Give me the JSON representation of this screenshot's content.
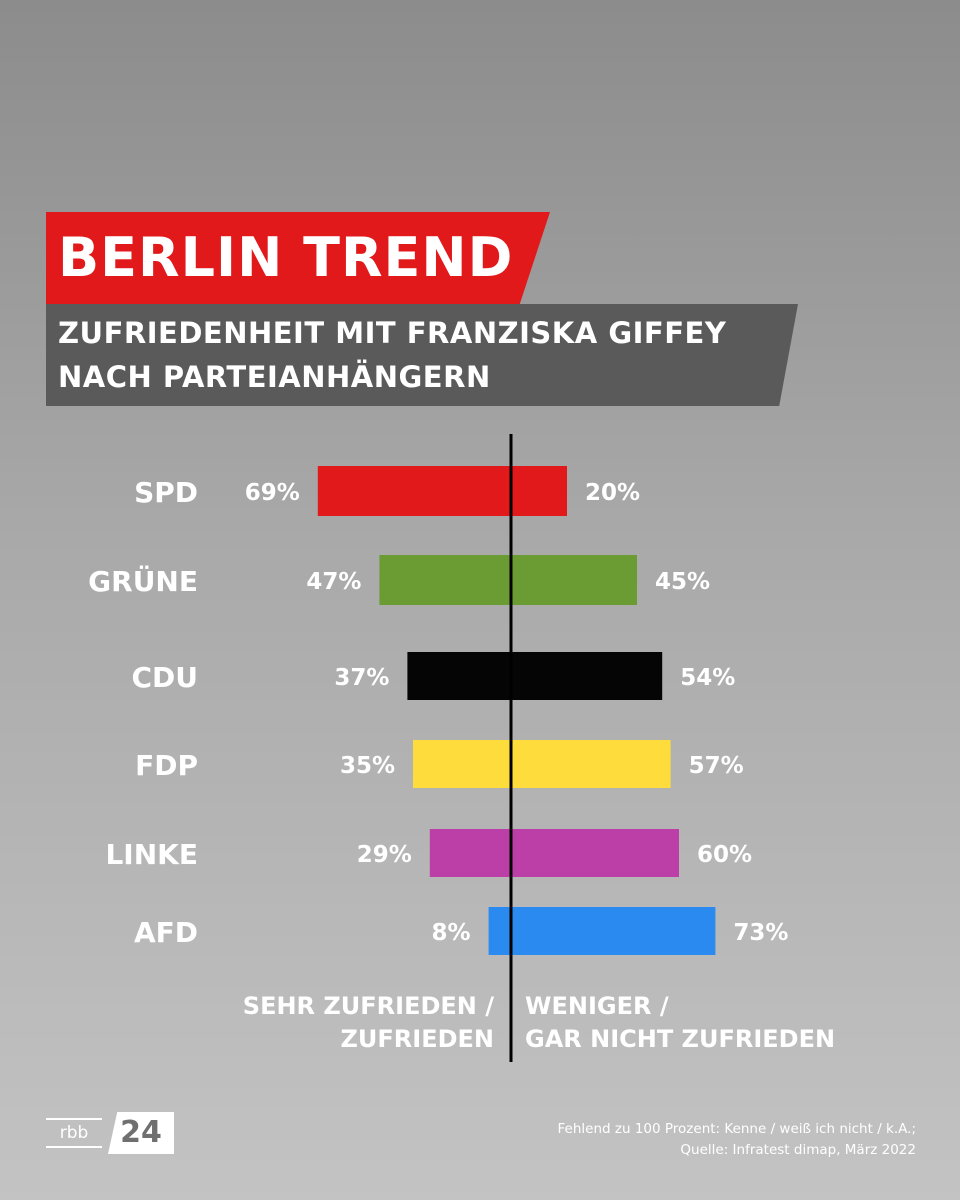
{
  "header": {
    "title": "BERLIN TREND",
    "subtitle_line1": "ZUFRIEDENHEIT MIT FRANZISKA GIFFEY",
    "subtitle_line2": "NACH PARTEIANHÄNGERN"
  },
  "chart_data": {
    "type": "bar",
    "orientation": "horizontal-diverging",
    "categories": [
      "SPD",
      "GRÜNE",
      "CDU",
      "FDP",
      "LINKE",
      "AFD"
    ],
    "series": [
      {
        "name": "SEHR ZUFRIEDEN / ZUFRIEDEN",
        "direction": "left",
        "values": [
          69,
          47,
          37,
          35,
          29,
          8
        ]
      },
      {
        "name": "WENIGER / GAR NICHT ZUFRIEDEN",
        "direction": "right",
        "values": [
          20,
          45,
          54,
          57,
          60,
          73
        ]
      }
    ],
    "value_suffix": "%",
    "colors": [
      "#e2191b",
      "#6a9c33",
      "#050505",
      "#fedc3b",
      "#bc3fa7",
      "#2a8af0"
    ],
    "value_label_color": "#ffffff",
    "center_line_color": "#000000",
    "grid": false
  },
  "captions": {
    "left_line1": "SEHR ZUFRIEDEN /",
    "left_line2": "ZUFRIEDEN",
    "right_line1": "WENIGER /",
    "right_line2": "GAR NICHT ZUFRIEDEN"
  },
  "logo": {
    "part1": "rbb",
    "part2": "24"
  },
  "footer": {
    "note": "Fehlend zu 100 Prozent: Kenne / weiß ich nicht / k.A.;",
    "source": "Quelle: Infratest dimap, März 2022"
  },
  "colors": {
    "accent": "#e2191b",
    "subtitle_bg": "#5a5a5a"
  }
}
